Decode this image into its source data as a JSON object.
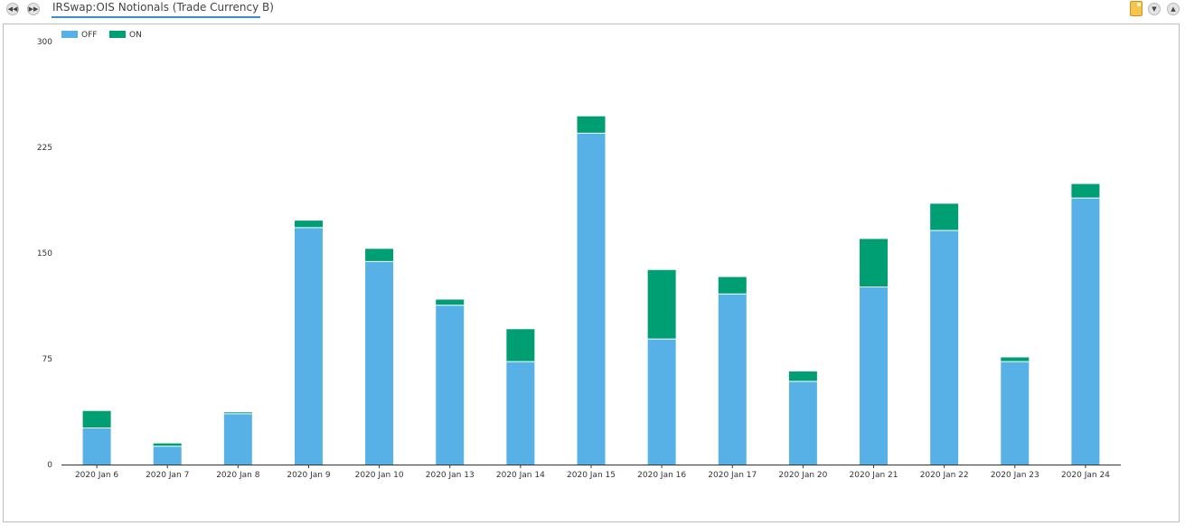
{
  "header": {
    "title": "IRSwap:OIS Notionals (Trade Currency B)"
  },
  "icons": {
    "back": "rewind-icon",
    "forward": "fast-forward-icon",
    "note": "note-icon",
    "collapse": "chevron-down-icon",
    "expand": "chevron-up-icon"
  },
  "chart_data": {
    "type": "bar",
    "stacked": true,
    "title": "",
    "xlabel": "",
    "ylabel": "",
    "ylim": [
      0,
      300
    ],
    "yticks": [
      0,
      75,
      150,
      225,
      300
    ],
    "grid": false,
    "legend": "top-left",
    "categories": [
      "2020 Jan 6",
      "2020 Jan 7",
      "2020 Jan 8",
      "2020 Jan 9",
      "2020 Jan 10",
      "2020 Jan 13",
      "2020 Jan 14",
      "2020 Jan 15",
      "2020 Jan 16",
      "2020 Jan 17",
      "2020 Jan 20",
      "2020 Jan 21",
      "2020 Jan 22",
      "2020 Jan 23",
      "2020 Jan 24"
    ],
    "series": [
      {
        "name": "OFF",
        "color": "#58b1e6",
        "values": [
          26,
          13,
          36,
          168,
          144,
          113,
          73,
          235,
          89,
          121,
          59,
          126,
          166,
          73,
          189
        ]
      },
      {
        "name": "ON",
        "color": "#009e73",
        "values": [
          12,
          2,
          1,
          5,
          9,
          4,
          23,
          12,
          49,
          12,
          7,
          34,
          19,
          3,
          10
        ]
      }
    ]
  }
}
